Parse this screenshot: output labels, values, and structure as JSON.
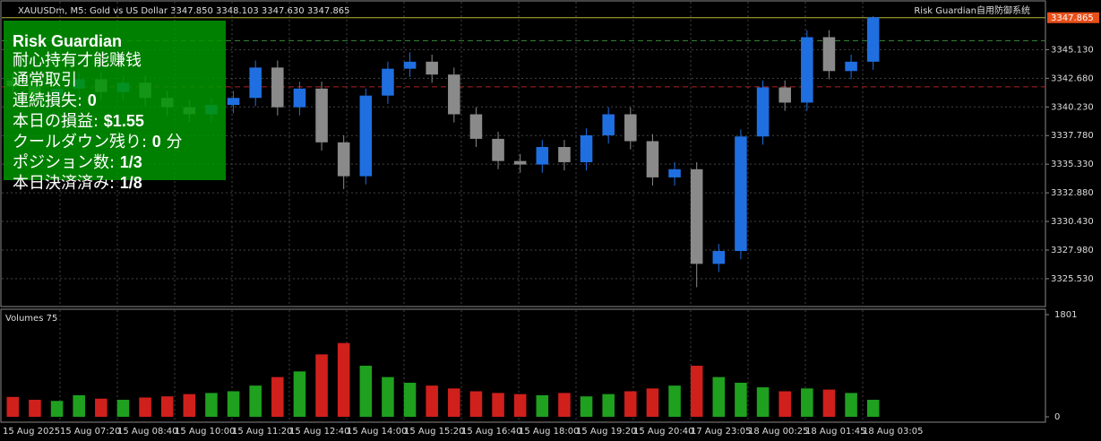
{
  "header": {
    "symbol": "XAUUSDm, M5:  Gold vs US Dollar  3347.850 3348.103 3347.630 3347.865",
    "indicator": "Risk Guardian自用防御系统"
  },
  "panel": {
    "title": "Risk Guardian",
    "lines": [
      {
        "label": "耐心持有才能赚钱"
      },
      {
        "label": "通常取引"
      },
      {
        "label": "連続損失: ",
        "value": "0"
      },
      {
        "label": "本日の損益: ",
        "value": "$1.55"
      },
      {
        "label": "クールダウン残り: ",
        "value": "0",
        "suffix": " 分"
      },
      {
        "label": "ポジション数: ",
        "value": "1/3"
      },
      {
        "label": "本日決済済み: ",
        "value": "1/8"
      }
    ]
  },
  "chart_data": {
    "type": "candlestick",
    "up_color": "#1f6fe0",
    "down_color": "#8a8a8a",
    "open": [
      3342.5,
      3342.0,
      3341.2,
      3341.8,
      3342.6,
      3341.5,
      3342.3,
      3341.0,
      3340.2,
      3339.6,
      3340.4,
      3341.0,
      3343.6,
      3340.2,
      3341.8,
      3337.2,
      3334.3,
      3341.2,
      3343.5,
      3344.1,
      3343.0,
      3339.6,
      3337.5,
      3335.6,
      3335.3,
      3336.8,
      3335.5,
      3337.8,
      3339.6,
      3337.3,
      3334.2,
      3334.9,
      3326.8,
      3327.9,
      3337.7,
      3341.9,
      3340.6,
      3346.2,
      3343.3,
      3344.1
    ],
    "high": [
      3343.1,
      3342.6,
      3342.4,
      3343.2,
      3343.2,
      3342.9,
      3342.9,
      3341.6,
      3340.8,
      3341.0,
      3341.6,
      3344.2,
      3344.2,
      3342.4,
      3342.4,
      3337.8,
      3341.8,
      3344.1,
      3344.9,
      3344.7,
      3343.6,
      3340.2,
      3338.1,
      3336.2,
      3337.4,
      3337.4,
      3338.4,
      3340.2,
      3340.2,
      3337.9,
      3335.5,
      3335.5,
      3328.5,
      3338.3,
      3342.5,
      3342.5,
      3346.8,
      3346.8,
      3344.7,
      3348.0
    ],
    "low": [
      3341.3,
      3340.5,
      3340.5,
      3341.1,
      3340.8,
      3340.8,
      3340.3,
      3339.5,
      3338.9,
      3338.9,
      3339.7,
      3340.3,
      3339.5,
      3339.5,
      3336.5,
      3333.2,
      3333.6,
      3340.5,
      3342.8,
      3342.3,
      3338.9,
      3336.8,
      3334.9,
      3334.6,
      3334.6,
      3334.8,
      3334.8,
      3337.1,
      3336.6,
      3333.5,
      3333.5,
      3324.8,
      3326.1,
      3327.2,
      3337.0,
      3339.9,
      3339.9,
      3342.6,
      3342.6,
      3343.4
    ],
    "close": [
      3342.0,
      3341.2,
      3341.8,
      3342.6,
      3341.5,
      3342.3,
      3341.0,
      3340.2,
      3339.6,
      3340.4,
      3341.0,
      3343.6,
      3340.2,
      3341.8,
      3337.2,
      3334.3,
      3341.2,
      3343.5,
      3344.1,
      3343.0,
      3339.6,
      3337.5,
      3335.6,
      3335.3,
      3336.8,
      3335.5,
      3337.8,
      3339.6,
      3337.3,
      3334.2,
      3334.9,
      3326.8,
      3327.9,
      3337.7,
      3341.9,
      3340.6,
      3346.2,
      3343.3,
      3344.1,
      3347.9
    ],
    "ylim": [
      3323.3,
      3348.0
    ],
    "yticks": [
      {
        "value": 3345.13,
        "label": "3345.130"
      },
      {
        "value": 3342.68,
        "label": "3342.680"
      },
      {
        "value": 3340.23,
        "label": "3340.230"
      },
      {
        "value": 3337.78,
        "label": "3337.780"
      },
      {
        "value": 3335.33,
        "label": "3335.330"
      },
      {
        "value": 3332.88,
        "label": "3332.880"
      },
      {
        "value": 3330.43,
        "label": "3330.430"
      },
      {
        "value": 3327.98,
        "label": "3327.980"
      },
      {
        "value": 3325.53,
        "label": "3325.530"
      }
    ],
    "price_lines": [
      {
        "value": 3347.865,
        "color": "#b5b53a"
      },
      {
        "value": 3345.9,
        "color": "#3a8a3a"
      },
      {
        "value": 3341.95,
        "color": "#b22222"
      }
    ],
    "time_labels": [
      "15 Aug 2025",
      "15 Aug 07:20",
      "15 Aug 08:40",
      "15 Aug 10:00",
      "15 Aug 11:20",
      "15 Aug 12:40",
      "15 Aug 14:00",
      "15 Aug 15:20",
      "15 Aug 16:40",
      "15 Aug 18:00",
      "15 Aug 19:20",
      "15 Aug 20:40",
      "17 Aug 23:05",
      "18 Aug 00:25",
      "18 Aug 01:45",
      "18 Aug 03:05"
    ],
    "volume": {
      "title": "Volumes 75",
      "up_color": "#1fa01f",
      "down_color": "#d0201c",
      "values": [
        350,
        300,
        280,
        380,
        320,
        300,
        340,
        360,
        400,
        420,
        450,
        550,
        700,
        800,
        1100,
        1300,
        900,
        700,
        600,
        550,
        500,
        450,
        420,
        400,
        380,
        420,
        360,
        400,
        450,
        500,
        550,
        900,
        700,
        600,
        520,
        450,
        500,
        480,
        420,
        300
      ],
      "ylim": [
        0,
        1801
      ],
      "yticks": [
        0,
        1801
      ]
    }
  }
}
